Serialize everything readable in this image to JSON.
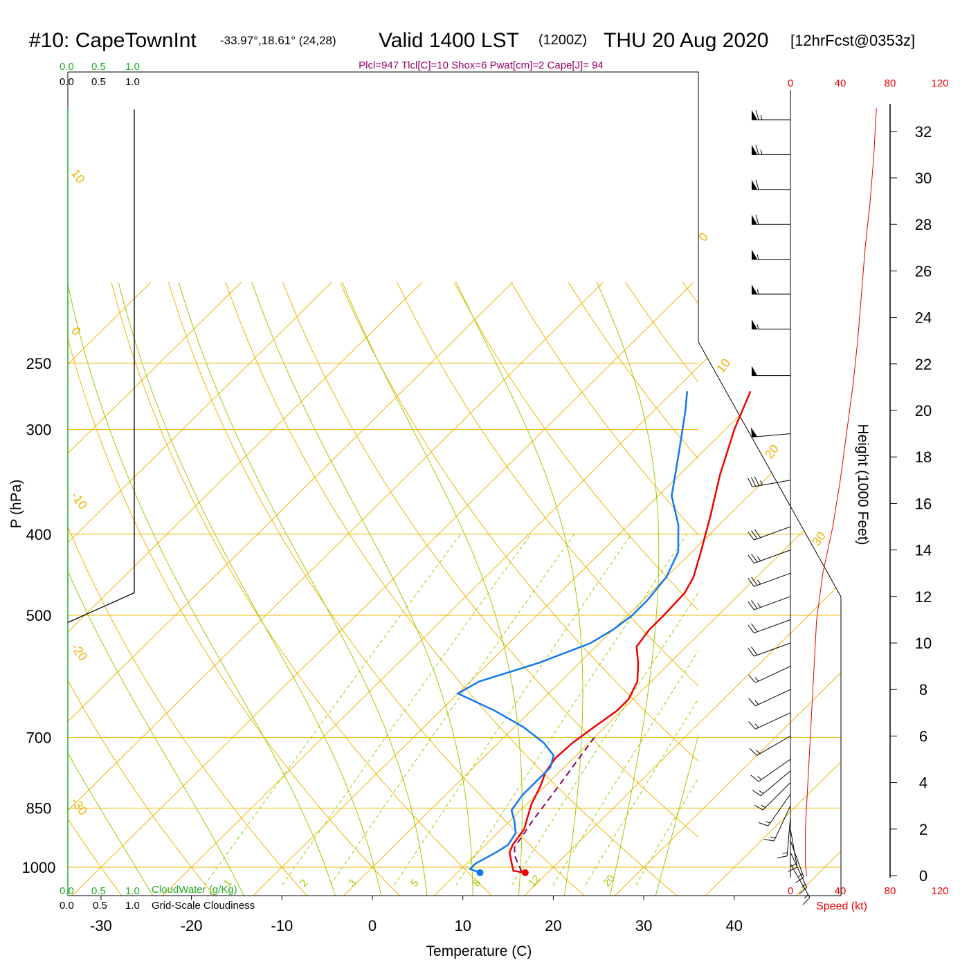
{
  "header": {
    "station": "#10: CapeTownInt",
    "coords": "-33.97°,18.61° (24,28)",
    "valid": "Valid 1400 LST",
    "utc": "(1200Z)",
    "date": "THU 20 Aug 2020",
    "forecast": "[12hrFcst@0353z]"
  },
  "params_line": "Plcl=947 Tlcl[C]=10 Shox=6 Pwat[cm]=2 Cape[J]= 94",
  "colors": {
    "isotherm": "#f0b400",
    "dry_adiabat": "#a0c800",
    "moist_adiabat": "#a0c800",
    "mixing_ratio": "#99cc00",
    "temperature": "#ee0000",
    "dewpoint": "#1177ee",
    "parcel": "#880066",
    "cloud_water": "#22aa22",
    "wind_speed": "#dd0000"
  },
  "cloud_panel": {
    "top_green": [
      "0.0",
      "0.5",
      "1.0"
    ],
    "top_black": [
      "0.0",
      "0.5",
      "1.0"
    ],
    "bottom_green": [
      "0.0",
      "0.5",
      "1.0"
    ],
    "bottom_black": [
      "0.0",
      "0.5",
      "1.0"
    ],
    "cloudwater_label": "CloudWater (g/Kg)",
    "cloudiness_label": "Grid-Scale Cloudiness"
  },
  "speed_panel": {
    "ticks_top": [
      "0",
      "40",
      "80",
      "120"
    ],
    "ticks_bottom": [
      "0",
      "40",
      "80",
      "120"
    ],
    "label": "Speed (kt)"
  },
  "height_axis": {
    "ticks": [
      "0",
      "2",
      "4",
      "6",
      "8",
      "10",
      "12",
      "14",
      "16",
      "18",
      "20",
      "22",
      "24",
      "26",
      "28",
      "30",
      "32"
    ],
    "title": "Height (1000 Feet)"
  },
  "chart_data": {
    "type": "line",
    "title": "#10: CapeTownInt -33.97°,18.61° (24,28) Valid 1400 LST (1200Z) THU 20 Aug 2020 [12hrFcst@0353z]",
    "xlabel": "Temperature (C)",
    "ylabel": "P (hPa)",
    "xlim": [
      -34,
      46
    ],
    "ylim": [
      1020,
      250
    ],
    "y_scale": "log",
    "x_ticks": [
      "-30",
      "-20",
      "-10",
      "0",
      "10",
      "20",
      "30",
      "40"
    ],
    "y_ticks": [
      "250",
      "300",
      "400",
      "500",
      "700",
      "850",
      "1000"
    ],
    "isotherm_labels": [
      "10",
      "0",
      "-10",
      "-20",
      "-30",
      "0",
      "10",
      "20",
      "30"
    ],
    "mixing_ratio_labels": [
      "1",
      "2",
      "3",
      "5",
      "8",
      "12",
      "20"
    ],
    "series": [
      {
        "name": "temperature",
        "points": [
          [
            17.5,
            1015
          ],
          [
            16.0,
            1010
          ],
          [
            15.0,
            990
          ],
          [
            13.5,
            960
          ],
          [
            13.0,
            940
          ],
          [
            12.5,
            900
          ],
          [
            11.5,
            870
          ],
          [
            10.5,
            840
          ],
          [
            9.5,
            800
          ],
          [
            8.5,
            770
          ],
          [
            8.0,
            740
          ],
          [
            8.2,
            710
          ],
          [
            8.8,
            680
          ],
          [
            9.5,
            650
          ],
          [
            9.5,
            630
          ],
          [
            8.5,
            600
          ],
          [
            6.5,
            570
          ],
          [
            4.5,
            545
          ],
          [
            4.0,
            520
          ],
          [
            4.0,
            500
          ],
          [
            3.8,
            470
          ],
          [
            3.0,
            450
          ],
          [
            1.0,
            420
          ],
          [
            -2.0,
            380
          ],
          [
            -5.5,
            340
          ],
          [
            -9.0,
            300
          ],
          [
            -11.5,
            270
          ]
        ]
      },
      {
        "name": "dewpoint",
        "points": [
          [
            12.5,
            1015
          ],
          [
            11.0,
            1005
          ],
          [
            11.0,
            990
          ],
          [
            12.0,
            960
          ],
          [
            12.5,
            940
          ],
          [
            12.0,
            910
          ],
          [
            10.5,
            880
          ],
          [
            9.0,
            855
          ],
          [
            8.5,
            820
          ],
          [
            8.5,
            790
          ],
          [
            8.5,
            760
          ],
          [
            7.5,
            735
          ],
          [
            5.0,
            710
          ],
          [
            1.0,
            680
          ],
          [
            -4.0,
            650
          ],
          [
            -8.0,
            630
          ],
          [
            -10.0,
            620
          ],
          [
            -9.0,
            600
          ],
          [
            -4.5,
            570
          ],
          [
            -1.0,
            540
          ],
          [
            0.0,
            520
          ],
          [
            0.5,
            500
          ],
          [
            0.5,
            480
          ],
          [
            0.0,
            450
          ],
          [
            -1.5,
            420
          ],
          [
            -4.5,
            390
          ],
          [
            -8.5,
            360
          ],
          [
            -12.5,
            320
          ],
          [
            -16.5,
            285
          ],
          [
            -18.5,
            270
          ]
        ]
      },
      {
        "name": "parcel",
        "points": [
          [
            17.0,
            1012
          ],
          [
            14.5,
            970
          ],
          [
            13.5,
            947
          ],
          [
            12.5,
            880
          ],
          [
            11.5,
            800
          ],
          [
            10.0,
            700
          ]
        ]
      },
      {
        "name": "wind_speed_kt",
        "points": [
          [
            13,
            0
          ],
          [
            12,
            0.5
          ],
          [
            12,
            2
          ],
          [
            14,
            4
          ],
          [
            15,
            5
          ],
          [
            17,
            7
          ],
          [
            19,
            9
          ],
          [
            21,
            11
          ],
          [
            26,
            13
          ],
          [
            34,
            15
          ],
          [
            40,
            17
          ],
          [
            45,
            19
          ],
          [
            50,
            21
          ],
          [
            54,
            23
          ],
          [
            57,
            25
          ],
          [
            60,
            27
          ],
          [
            64,
            29
          ],
          [
            67,
            31
          ],
          [
            69,
            33
          ]
        ]
      }
    ],
    "wind_barbs": [
      {
        "height_kft": 0.5,
        "dir_deg": 150,
        "speed_kt": 15
      },
      {
        "height_kft": 1.0,
        "dir_deg": 155,
        "speed_kt": 15
      },
      {
        "height_kft": 1.5,
        "dir_deg": 160,
        "speed_kt": 15
      },
      {
        "height_kft": 2.0,
        "dir_deg": 170,
        "speed_kt": 15
      },
      {
        "height_kft": 2.5,
        "dir_deg": 185,
        "speed_kt": 15
      },
      {
        "height_kft": 3.0,
        "dir_deg": 205,
        "speed_kt": 15
      },
      {
        "height_kft": 3.5,
        "dir_deg": 215,
        "speed_kt": 15
      },
      {
        "height_kft": 4.0,
        "dir_deg": 225,
        "speed_kt": 15
      },
      {
        "height_kft": 4.5,
        "dir_deg": 230,
        "speed_kt": 15
      },
      {
        "height_kft": 5.0,
        "dir_deg": 235,
        "speed_kt": 15
      },
      {
        "height_kft": 6.0,
        "dir_deg": 240,
        "speed_kt": 15
      },
      {
        "height_kft": 7.0,
        "dir_deg": 245,
        "speed_kt": 15
      },
      {
        "height_kft": 8.0,
        "dir_deg": 245,
        "speed_kt": 15
      },
      {
        "height_kft": 9.0,
        "dir_deg": 245,
        "speed_kt": 15
      },
      {
        "height_kft": 10.0,
        "dir_deg": 250,
        "speed_kt": 20
      },
      {
        "height_kft": 11.0,
        "dir_deg": 250,
        "speed_kt": 20
      },
      {
        "height_kft": 12.0,
        "dir_deg": 250,
        "speed_kt": 25
      },
      {
        "height_kft": 13.0,
        "dir_deg": 250,
        "speed_kt": 25
      },
      {
        "height_kft": 14.0,
        "dir_deg": 250,
        "speed_kt": 25
      },
      {
        "height_kft": 15.0,
        "dir_deg": 250,
        "speed_kt": 30
      },
      {
        "height_kft": 17.0,
        "dir_deg": 260,
        "speed_kt": 35
      },
      {
        "height_kft": 19.0,
        "dir_deg": 265,
        "speed_kt": 50
      },
      {
        "height_kft": 21.5,
        "dir_deg": 270,
        "speed_kt": 50
      },
      {
        "height_kft": 23.5,
        "dir_deg": 270,
        "speed_kt": 55
      },
      {
        "height_kft": 25.0,
        "dir_deg": 270,
        "speed_kt": 55
      },
      {
        "height_kft": 26.5,
        "dir_deg": 270,
        "speed_kt": 55
      },
      {
        "height_kft": 28.0,
        "dir_deg": 270,
        "speed_kt": 60
      },
      {
        "height_kft": 29.5,
        "dir_deg": 270,
        "speed_kt": 60
      },
      {
        "height_kft": 31.0,
        "dir_deg": 270,
        "speed_kt": 65
      },
      {
        "height_kft": 32.5,
        "dir_deg": 270,
        "speed_kt": 65
      }
    ],
    "cloud_fraction": [
      {
        "p": 500,
        "value": 0.0
      },
      {
        "p": 470,
        "value": 0.75
      },
      {
        "p": 270,
        "value": 0.75
      }
    ],
    "surface_markers": {
      "temperature_c": 17.5,
      "dewpoint_c": 12.5,
      "p": 1015
    }
  }
}
